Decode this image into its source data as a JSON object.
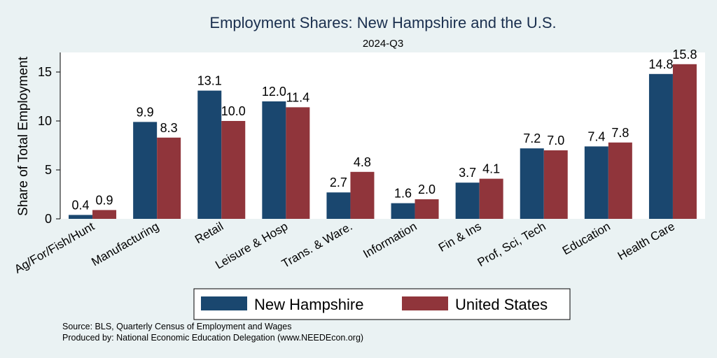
{
  "chart_data": {
    "type": "bar",
    "title": "Employment Shares: New Hampshire and the U.S.",
    "subtitle": "2024-Q3",
    "ylabel": "Share of Total Employment",
    "xlabel": "",
    "ylim": [
      0,
      17
    ],
    "yticks": [
      0,
      5,
      10,
      15
    ],
    "grid": false,
    "legend_position": "bottom",
    "categories": [
      "Ag/For/Fish/Hunt",
      "Manufacturing",
      "Retail",
      "Leisure & Hosp",
      "Trans. & Ware.",
      "Information",
      "Fin & Ins",
      "Prof, Sci, Tech",
      "Education",
      "Health Care"
    ],
    "series": [
      {
        "name": "New Hampshire",
        "color": "#1a476f",
        "values": [
          0.4,
          9.9,
          13.1,
          12.0,
          2.7,
          1.6,
          3.7,
          7.2,
          7.4,
          14.8
        ],
        "labels": [
          "0.4",
          "9.9",
          "13.1",
          "12.0",
          "2.7",
          "1.6",
          "3.7",
          "7.2",
          "7.4",
          "14.8"
        ]
      },
      {
        "name": "United States",
        "color": "#90353b",
        "values": [
          0.9,
          8.3,
          10.0,
          11.4,
          4.8,
          2.0,
          4.1,
          7.0,
          7.8,
          15.8
        ],
        "labels": [
          "0.9",
          "8.3",
          "10.0",
          "11.4",
          "4.8",
          "2.0",
          "4.1",
          "7.0",
          "7.8",
          "15.8"
        ]
      }
    ]
  },
  "notes": {
    "source": "Source: BLS, Quarterly Census of Employment and Wages",
    "produced_by": "Produced by: National Economic Education Delegation (www.NEEDEcon.org)"
  }
}
